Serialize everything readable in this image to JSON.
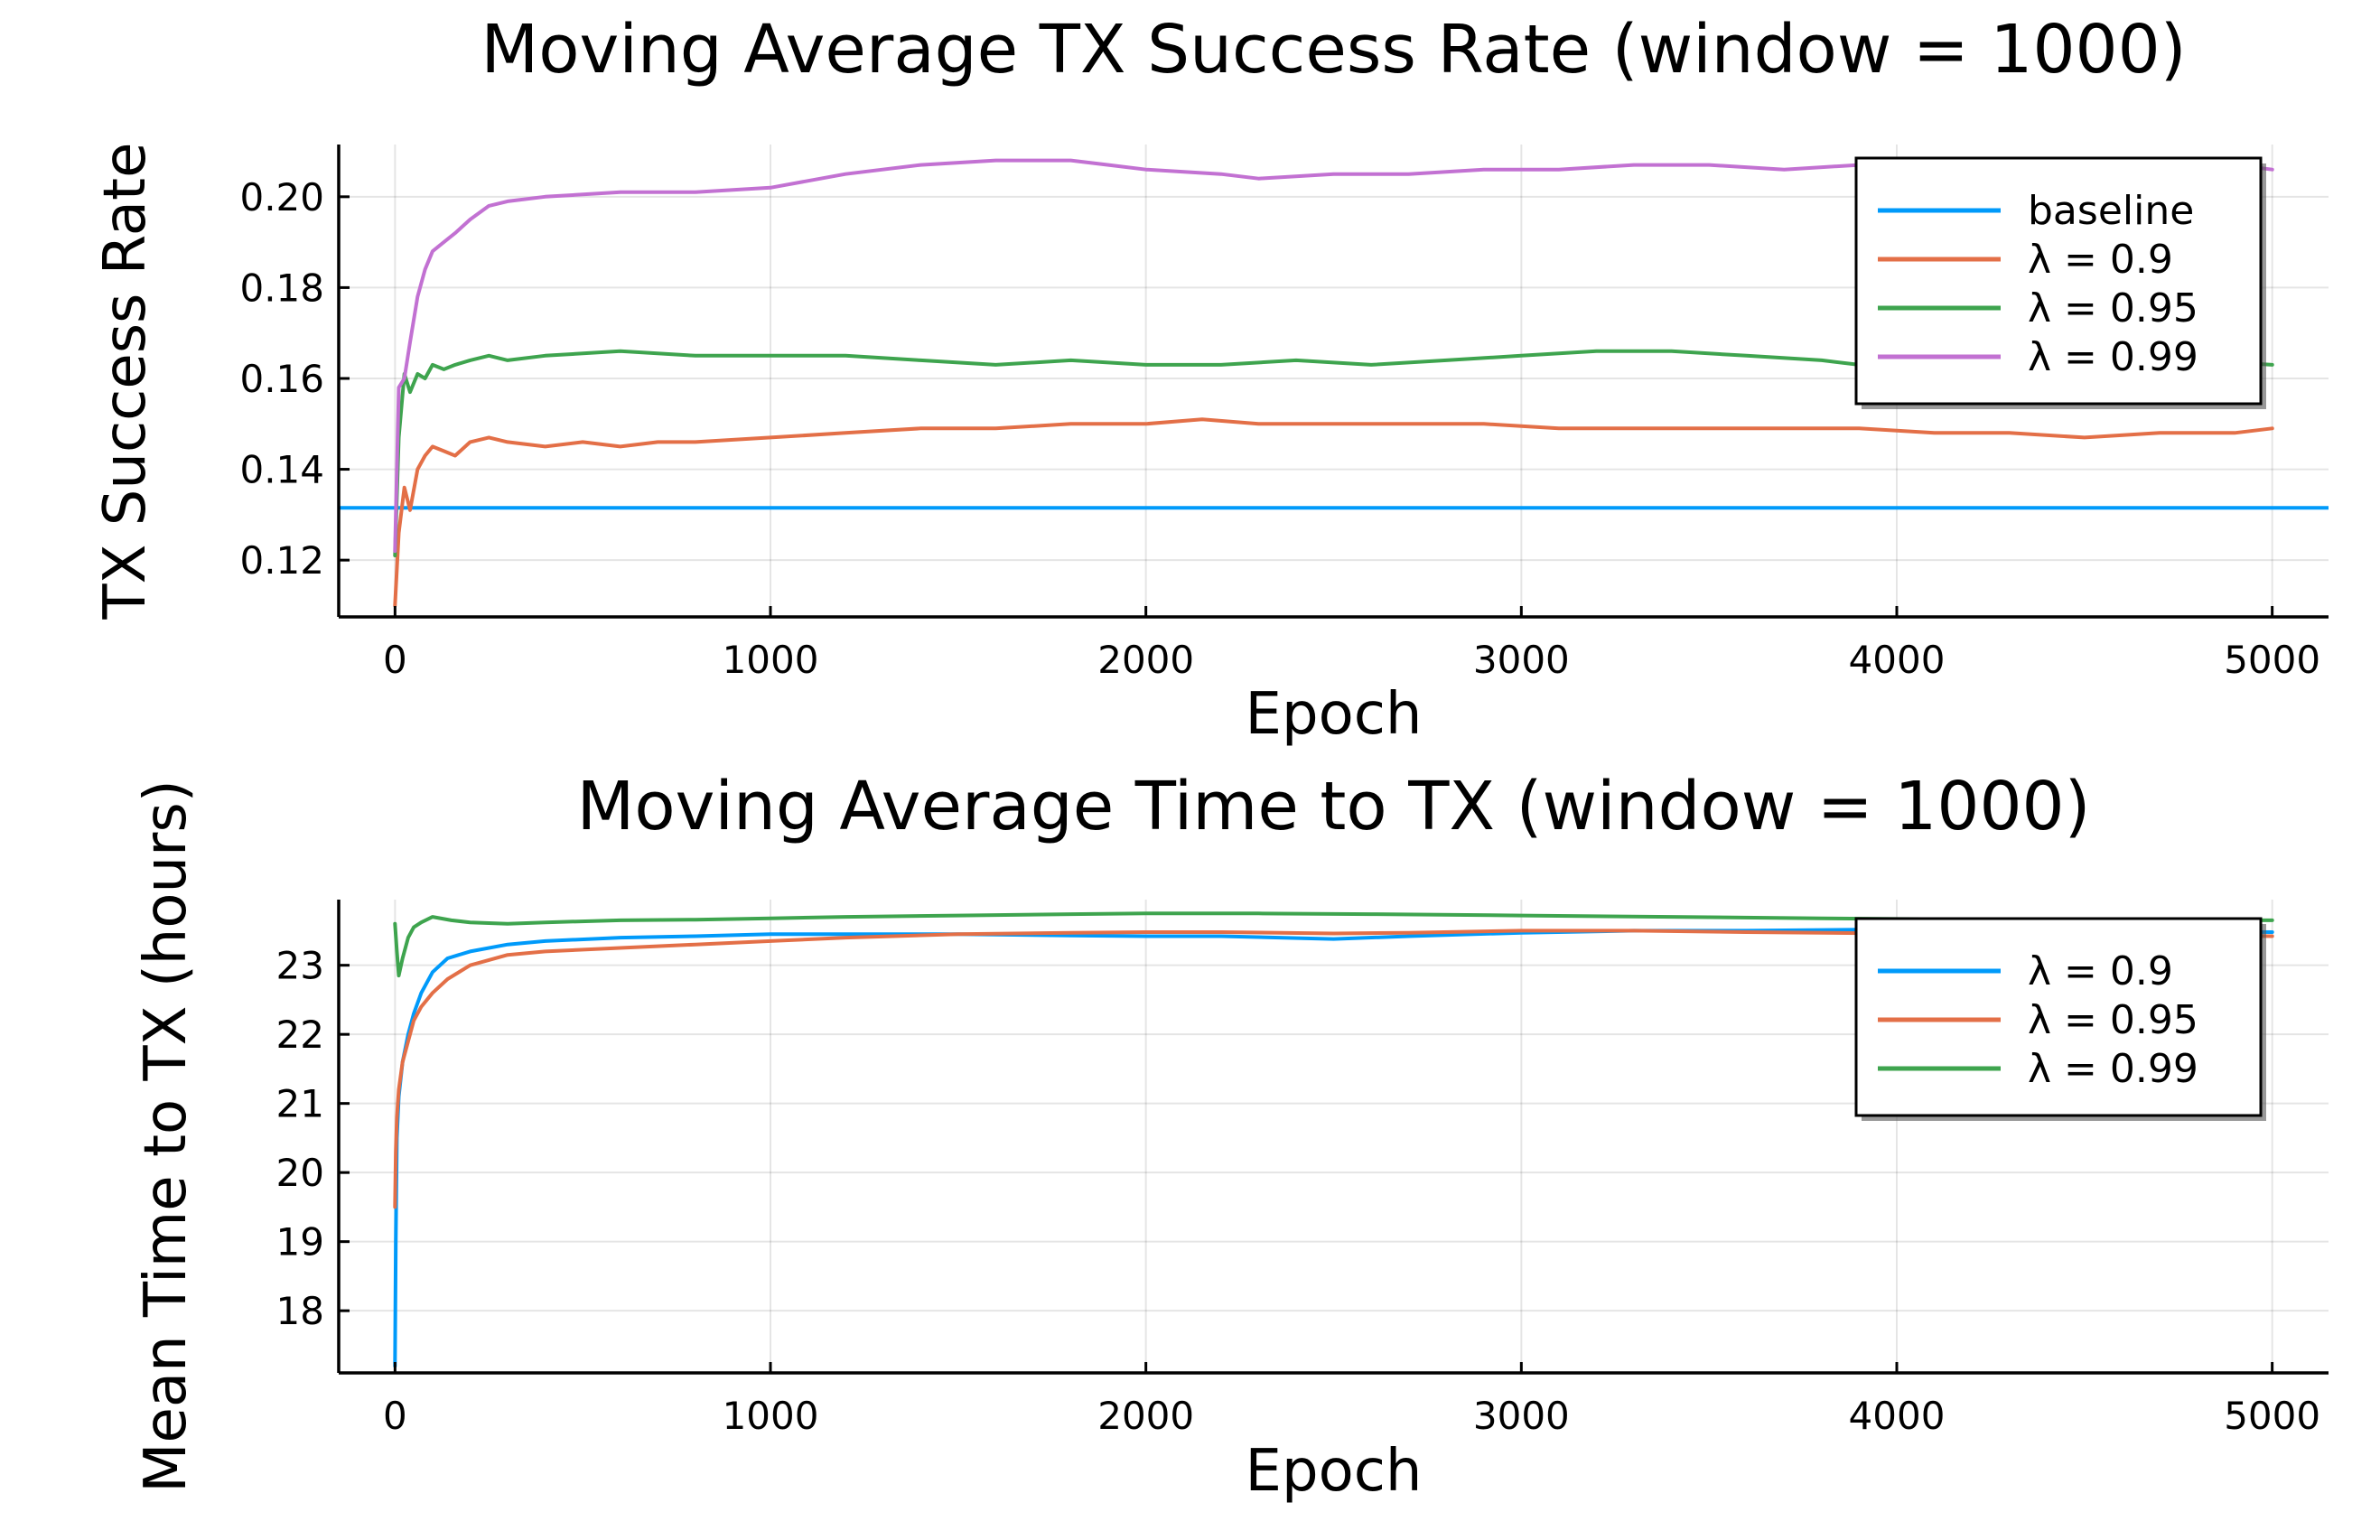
{
  "chart_data": [
    {
      "type": "line",
      "title": "Moving Average TX Success Rate (window = 1000)",
      "xlabel": "Epoch",
      "ylabel": "TX Success Rate",
      "xlim": [
        -150,
        5150
      ],
      "ylim": [
        0.1075,
        0.2115
      ],
      "xticks": [
        0,
        1000,
        2000,
        3000,
        4000,
        5000
      ],
      "xtick_labels": [
        "0",
        "1000",
        "2000",
        "3000",
        "4000",
        "5000"
      ],
      "yticks": [
        0.12,
        0.14,
        0.16,
        0.18,
        0.2
      ],
      "ytick_labels": [
        "0.12",
        "0.14",
        "0.16",
        "0.18",
        "0.20"
      ],
      "grid": true,
      "legend": "top-right",
      "series": [
        {
          "name": "baseline",
          "color": "#009AFA",
          "x": [
            -150,
            5150
          ],
          "y": [
            0.1315,
            0.1315
          ]
        },
        {
          "name": "λ = 0.9",
          "color": "#E36F47",
          "x": [
            0,
            10,
            25,
            40,
            60,
            80,
            100,
            130,
            160,
            200,
            250,
            300,
            400,
            500,
            600,
            700,
            800,
            1000,
            1200,
            1400,
            1600,
            1800,
            2000,
            2150,
            2300,
            2500,
            2700,
            2900,
            3100,
            3300,
            3500,
            3700,
            3900,
            4100,
            4300,
            4500,
            4700,
            4900,
            5000
          ],
          "y": [
            0.11,
            0.126,
            0.136,
            0.131,
            0.14,
            0.143,
            0.145,
            0.144,
            0.143,
            0.146,
            0.147,
            0.146,
            0.145,
            0.146,
            0.145,
            0.146,
            0.146,
            0.147,
            0.148,
            0.149,
            0.149,
            0.15,
            0.15,
            0.151,
            0.15,
            0.15,
            0.15,
            0.15,
            0.149,
            0.149,
            0.149,
            0.149,
            0.149,
            0.148,
            0.148,
            0.147,
            0.148,
            0.148,
            0.149
          ]
        },
        {
          "name": "λ = 0.95",
          "color": "#3EA44E",
          "x": [
            0,
            10,
            25,
            40,
            60,
            80,
            100,
            130,
            160,
            200,
            250,
            300,
            400,
            600,
            800,
            1000,
            1200,
            1400,
            1600,
            1800,
            2000,
            2200,
            2400,
            2600,
            2800,
            3000,
            3200,
            3400,
            3600,
            3800,
            3900,
            4000,
            4200,
            4400,
            4600,
            4800,
            5000
          ],
          "y": [
            0.121,
            0.147,
            0.161,
            0.157,
            0.161,
            0.16,
            0.163,
            0.162,
            0.163,
            0.164,
            0.165,
            0.164,
            0.165,
            0.166,
            0.165,
            0.165,
            0.165,
            0.164,
            0.163,
            0.164,
            0.163,
            0.163,
            0.164,
            0.163,
            0.164,
            0.165,
            0.166,
            0.166,
            0.165,
            0.164,
            0.163,
            0.163,
            0.164,
            0.165,
            0.164,
            0.164,
            0.163
          ]
        },
        {
          "name": "λ = 0.99",
          "color": "#C271D2",
          "x": [
            0,
            10,
            25,
            40,
            60,
            80,
            100,
            130,
            160,
            200,
            250,
            300,
            400,
            600,
            800,
            1000,
            1200,
            1400,
            1600,
            1800,
            1900,
            2000,
            2200,
            2300,
            2500,
            2700,
            2900,
            3100,
            3300,
            3500,
            3700,
            3900,
            4100,
            4300,
            4500,
            4700,
            4900,
            5000
          ],
          "y": [
            0.122,
            0.158,
            0.16,
            0.168,
            0.178,
            0.184,
            0.188,
            0.19,
            0.192,
            0.195,
            0.198,
            0.199,
            0.2,
            0.201,
            0.201,
            0.202,
            0.205,
            0.207,
            0.208,
            0.208,
            0.207,
            0.206,
            0.205,
            0.204,
            0.205,
            0.205,
            0.206,
            0.206,
            0.207,
            0.207,
            0.206,
            0.207,
            0.207,
            0.206,
            0.206,
            0.207,
            0.207,
            0.206
          ]
        }
      ]
    },
    {
      "type": "line",
      "title": "Moving Average Time to TX (window = 1000)",
      "xlabel": "Epoch",
      "ylabel": "Mean Time to TX (hours)",
      "xlim": [
        -150,
        5150
      ],
      "ylim": [
        17.1,
        23.95
      ],
      "xticks": [
        0,
        1000,
        2000,
        3000,
        4000,
        5000
      ],
      "xtick_labels": [
        "0",
        "1000",
        "2000",
        "3000",
        "4000",
        "5000"
      ],
      "yticks": [
        18,
        19,
        20,
        21,
        22,
        23
      ],
      "ytick_labels": [
        "18",
        "19",
        "20",
        "21",
        "22",
        "23"
      ],
      "grid": true,
      "legend": "top-right",
      "series": [
        {
          "name": "λ = 0.9",
          "color": "#009AFA",
          "x": [
            0,
            2,
            5,
            10,
            20,
            35,
            50,
            70,
            100,
            140,
            200,
            300,
            400,
            600,
            800,
            1000,
            1200,
            1500,
            1800,
            2000,
            2200,
            2500,
            2700,
            3000,
            3300,
            3600,
            4000,
            4500,
            5000
          ],
          "y": [
            17.2,
            19.0,
            20.5,
            21.1,
            21.6,
            22.0,
            22.3,
            22.6,
            22.9,
            23.1,
            23.2,
            23.3,
            23.35,
            23.4,
            23.42,
            23.45,
            23.45,
            23.45,
            23.43,
            23.42,
            23.42,
            23.38,
            23.42,
            23.47,
            23.5,
            23.5,
            23.52,
            23.5,
            23.48
          ]
        },
        {
          "name": "λ = 0.95",
          "color": "#E36F47",
          "x": [
            0,
            2,
            5,
            10,
            20,
            35,
            50,
            70,
            100,
            140,
            200,
            300,
            400,
            600,
            800,
            1000,
            1200,
            1500,
            1800,
            2000,
            2200,
            2500,
            2700,
            3000,
            3300,
            3600,
            4000,
            4500,
            5000
          ],
          "y": [
            19.5,
            20.3,
            20.8,
            21.2,
            21.6,
            21.9,
            22.2,
            22.4,
            22.6,
            22.8,
            23.0,
            23.15,
            23.2,
            23.25,
            23.3,
            23.35,
            23.4,
            23.45,
            23.47,
            23.48,
            23.48,
            23.46,
            23.47,
            23.5,
            23.5,
            23.48,
            23.46,
            23.45,
            23.42
          ]
        },
        {
          "name": "λ = 0.99",
          "color": "#3EA44E",
          "x": [
            0,
            5,
            10,
            20,
            35,
            50,
            70,
            100,
            150,
            200,
            300,
            400,
            600,
            800,
            1000,
            1200,
            1500,
            1800,
            2000,
            2300,
            2600,
            3000,
            3400,
            3800,
            4000,
            4500,
            5000
          ],
          "y": [
            23.6,
            23.2,
            22.85,
            23.1,
            23.4,
            23.55,
            23.62,
            23.7,
            23.65,
            23.62,
            23.6,
            23.62,
            23.65,
            23.66,
            23.68,
            23.7,
            23.72,
            23.74,
            23.75,
            23.75,
            23.74,
            23.72,
            23.7,
            23.68,
            23.67,
            23.66,
            23.65
          ]
        }
      ]
    }
  ]
}
